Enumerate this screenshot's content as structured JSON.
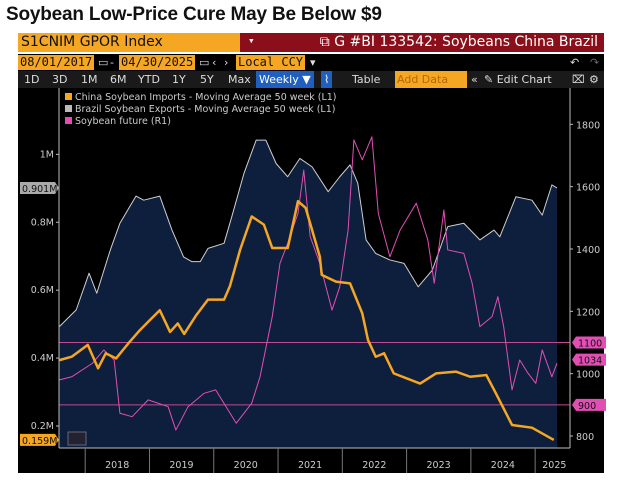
{
  "title": "Soybean Low-Price Cure May Be Below $9",
  "toolbar": {
    "ticker": "S1CNIM GPOR Index",
    "graph_title": "G #BI 133542: Soybeans China Brazil",
    "start_date": "08/01/2017",
    "end_date": "04/30/2025",
    "currency": "Local CCY",
    "ranges": [
      "1D",
      "3D",
      "1M",
      "6M",
      "YTD",
      "1Y",
      "5Y",
      "Max"
    ],
    "frequency": "Weekly ▼",
    "table": "Table",
    "add_data": "Add Data",
    "edit_chart": "Edit Chart",
    "dash": "-"
  },
  "colors": {
    "china": "#f5a623",
    "brazil": "#cfcfcf",
    "soy": "#e24fb4",
    "area": "#0d1f3c"
  },
  "chart_data": {
    "type": "line",
    "title": "",
    "x_ticks": [
      "2018",
      "2019",
      "2020",
      "2021",
      "2022",
      "2023",
      "2024",
      "2025"
    ],
    "left_axis": {
      "ticks": [
        "0.2M",
        "0.4M",
        "0.6M",
        "0.8M",
        "1M"
      ],
      "tick_values": [
        0.2,
        0.4,
        0.6,
        0.8,
        1.0
      ],
      "unit": "M"
    },
    "right_axis": {
      "ticks": [
        "800",
        "1000",
        "1200",
        "1400",
        "1600",
        "1800"
      ],
      "tick_values": [
        800,
        1000,
        1200,
        1400,
        1600,
        1800
      ]
    },
    "reference_lines": [
      {
        "label": "1100",
        "value": 1100
      },
      {
        "label": "900",
        "value": 900
      }
    ],
    "last_values": {
      "brazil": "0.901M",
      "china": "0.159M",
      "soy": "1034"
    },
    "series": [
      {
        "name": "China Soybean Imports - Moving Average 50 week (L1)",
        "axis": "left",
        "points": [
          [
            2017.6,
            0.394
          ],
          [
            2017.79,
            0.404
          ],
          [
            2018.04,
            0.439
          ],
          [
            2018.2,
            0.37
          ],
          [
            2018.32,
            0.414
          ],
          [
            2018.48,
            0.399
          ],
          [
            2018.67,
            0.443
          ],
          [
            2018.85,
            0.482
          ],
          [
            2018.98,
            0.507
          ],
          [
            2019.16,
            0.541
          ],
          [
            2019.32,
            0.477
          ],
          [
            2019.44,
            0.502
          ],
          [
            2019.54,
            0.471
          ],
          [
            2019.73,
            0.527
          ],
          [
            2019.91,
            0.572
          ],
          [
            2020.16,
            0.572
          ],
          [
            2020.25,
            0.611
          ],
          [
            2020.41,
            0.719
          ],
          [
            2020.59,
            0.817
          ],
          [
            2020.78,
            0.793
          ],
          [
            2020.91,
            0.724
          ],
          [
            2021.15,
            0.724
          ],
          [
            2021.31,
            0.862
          ],
          [
            2021.43,
            0.842
          ],
          [
            2021.65,
            0.699
          ],
          [
            2021.68,
            0.645
          ],
          [
            2021.9,
            0.625
          ],
          [
            2022.12,
            0.62
          ],
          [
            2022.31,
            0.532
          ],
          [
            2022.4,
            0.453
          ],
          [
            2022.52,
            0.404
          ],
          [
            2022.65,
            0.414
          ],
          [
            2022.8,
            0.355
          ],
          [
            2023.21,
            0.325
          ],
          [
            2023.46,
            0.355
          ],
          [
            2023.77,
            0.36
          ],
          [
            2023.99,
            0.345
          ],
          [
            2024.24,
            0.35
          ],
          [
            2024.39,
            0.296
          ],
          [
            2024.64,
            0.203
          ],
          [
            2024.95,
            0.195
          ],
          [
            2025.29,
            0.159
          ]
        ]
      },
      {
        "name": "Brazil Soybean Exports - Moving Average 50 week (L1)",
        "axis": "left",
        "points": [
          [
            2017.6,
            0.493
          ],
          [
            2017.86,
            0.542
          ],
          [
            2018.06,
            0.65
          ],
          [
            2018.18,
            0.591
          ],
          [
            2018.39,
            0.718
          ],
          [
            2018.54,
            0.797
          ],
          [
            2018.79,
            0.877
          ],
          [
            2018.91,
            0.865
          ],
          [
            2019.16,
            0.877
          ],
          [
            2019.35,
            0.777
          ],
          [
            2019.53,
            0.698
          ],
          [
            2019.66,
            0.684
          ],
          [
            2019.79,
            0.684
          ],
          [
            2019.91,
            0.723
          ],
          [
            2020.16,
            0.738
          ],
          [
            2020.28,
            0.816
          ],
          [
            2020.47,
            0.944
          ],
          [
            2020.66,
            1.042
          ],
          [
            2020.81,
            1.042
          ],
          [
            2020.97,
            0.973
          ],
          [
            2021.15,
            0.934
          ],
          [
            2021.34,
            0.988
          ],
          [
            2021.53,
            0.963
          ],
          [
            2021.78,
            0.89
          ],
          [
            2021.96,
            0.934
          ],
          [
            2022.12,
            0.969
          ],
          [
            2022.24,
            0.915
          ],
          [
            2022.37,
            0.748
          ],
          [
            2022.52,
            0.708
          ],
          [
            2022.74,
            0.689
          ],
          [
            2022.96,
            0.679
          ],
          [
            2023.18,
            0.61
          ],
          [
            2023.4,
            0.659
          ],
          [
            2023.64,
            0.787
          ],
          [
            2023.89,
            0.797
          ],
          [
            2024.14,
            0.748
          ],
          [
            2024.36,
            0.777
          ],
          [
            2024.45,
            0.757
          ],
          [
            2024.7,
            0.875
          ],
          [
            2024.95,
            0.865
          ],
          [
            2025.11,
            0.821
          ],
          [
            2025.26,
            0.91
          ],
          [
            2025.34,
            0.901
          ]
        ]
      },
      {
        "name": "Soybean future (R1)",
        "axis": "right",
        "points": [
          [
            2017.6,
            980
          ],
          [
            2017.79,
            990
          ],
          [
            2018.11,
            1033
          ],
          [
            2018.29,
            1076
          ],
          [
            2018.45,
            1044
          ],
          [
            2018.54,
            873
          ],
          [
            2018.73,
            862
          ],
          [
            2018.98,
            916
          ],
          [
            2019.29,
            894
          ],
          [
            2019.41,
            819
          ],
          [
            2019.6,
            894
          ],
          [
            2019.85,
            937
          ],
          [
            2020.03,
            948
          ],
          [
            2020.35,
            841
          ],
          [
            2020.59,
            905
          ],
          [
            2020.72,
            990
          ],
          [
            2020.91,
            1183
          ],
          [
            2021.03,
            1354
          ],
          [
            2021.15,
            1418
          ],
          [
            2021.31,
            1514
          ],
          [
            2021.4,
            1653
          ],
          [
            2021.5,
            1440
          ],
          [
            2021.65,
            1354
          ],
          [
            2021.84,
            1204
          ],
          [
            2021.96,
            1279
          ],
          [
            2022.09,
            1461
          ],
          [
            2022.18,
            1750
          ],
          [
            2022.31,
            1686
          ],
          [
            2022.46,
            1760
          ],
          [
            2022.56,
            1514
          ],
          [
            2022.74,
            1375
          ],
          [
            2022.9,
            1461
          ],
          [
            2023.15,
            1547
          ],
          [
            2023.33,
            1429
          ],
          [
            2023.43,
            1290
          ],
          [
            2023.58,
            1525
          ],
          [
            2023.64,
            1397
          ],
          [
            2023.89,
            1386
          ],
          [
            2024.02,
            1290
          ],
          [
            2024.14,
            1151
          ],
          [
            2024.33,
            1183
          ],
          [
            2024.42,
            1247
          ],
          [
            2024.51,
            1151
          ],
          [
            2024.64,
            948
          ],
          [
            2024.76,
            1044
          ],
          [
            2024.89,
            1001
          ],
          [
            2025.01,
            969
          ],
          [
            2025.11,
            1076
          ],
          [
            2025.26,
            990
          ],
          [
            2025.34,
            1034
          ]
        ]
      }
    ]
  }
}
